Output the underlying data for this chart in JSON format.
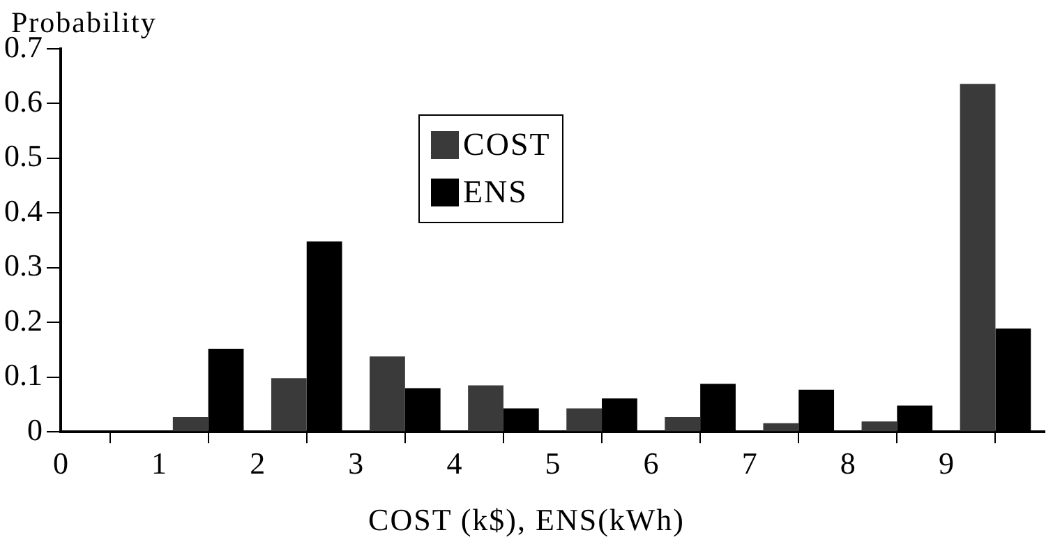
{
  "chart_data": {
    "type": "bar",
    "xlabel": "COST (k$), ENS(kWh)",
    "ylabel": "Probability",
    "x": [
      1.5,
      2.5,
      3.5,
      4.5,
      5.5,
      6.5,
      7.5,
      8.5,
      9.5
    ],
    "series": [
      {
        "name": "COST",
        "color": "#3a3a3a",
        "values": [
          0.027,
          0.098,
          0.138,
          0.085,
          0.043,
          0.027,
          0.016,
          0.019,
          0.636
        ]
      },
      {
        "name": "ENS",
        "color": "#000000",
        "values": [
          0.152,
          0.348,
          0.08,
          0.043,
          0.061,
          0.088,
          0.077,
          0.048,
          0.189
        ]
      }
    ],
    "xlim": [
      0,
      10
    ],
    "xticks": [
      0,
      1,
      2,
      3,
      4,
      5,
      6,
      7,
      8,
      9
    ],
    "ylim": [
      0,
      0.7
    ],
    "yticks": [
      0,
      0.1,
      0.2,
      0.3,
      0.4,
      0.5,
      0.6,
      0.7
    ],
    "grid": false,
    "legend": "top"
  }
}
